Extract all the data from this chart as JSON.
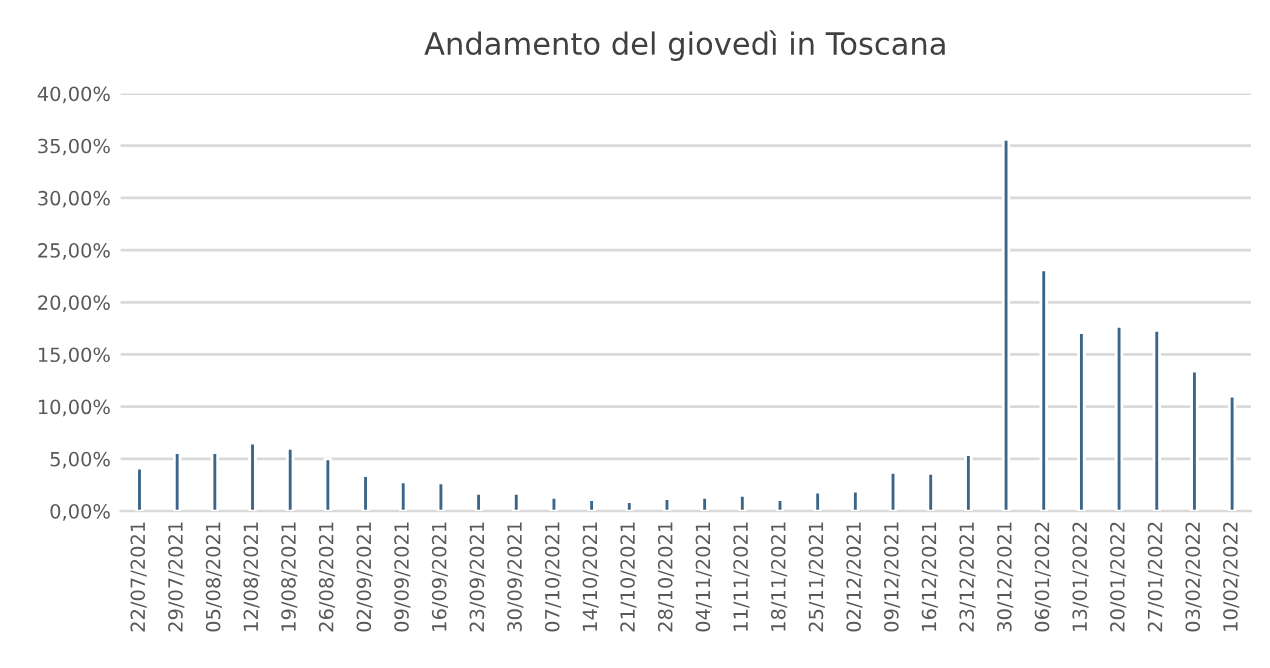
{
  "chart_data": {
    "type": "bar",
    "title": "Andamento del giovedì in Toscana",
    "categories": [
      "22/07/2021",
      "29/07/2021",
      "05/08/2021",
      "12/08/2021",
      "19/08/2021",
      "26/08/2021",
      "02/09/2021",
      "09/09/2021",
      "16/09/2021",
      "23/09/2021",
      "30/09/2021",
      "07/10/2021",
      "14/10/2021",
      "21/10/2021",
      "28/10/2021",
      "04/11/2021",
      "11/11/2021",
      "18/11/2021",
      "25/11/2021",
      "02/12/2021",
      "09/12/2021",
      "16/12/2021",
      "23/12/2021",
      "30/12/2021",
      "06/01/2022",
      "13/01/2022",
      "20/01/2022",
      "27/01/2022",
      "03/02/2022",
      "10/02/2022"
    ],
    "values": [
      4.1,
      5.6,
      5.6,
      6.5,
      6.0,
      5.0,
      3.4,
      2.8,
      2.7,
      1.7,
      1.7,
      1.3,
      1.1,
      0.9,
      1.2,
      1.3,
      1.5,
      1.1,
      1.8,
      1.9,
      3.7,
      3.6,
      5.4,
      35.6,
      23.1,
      17.1,
      17.7,
      17.3,
      13.4,
      11.0
    ],
    "color": "#3c6589",
    "ylim": [
      0,
      40
    ],
    "yticks": [
      {
        "value": 0,
        "label": "0,00%"
      },
      {
        "value": 5,
        "label": "5,00%"
      },
      {
        "value": 10,
        "label": "10,00%"
      },
      {
        "value": 15,
        "label": "15,00%"
      },
      {
        "value": 20,
        "label": "20,00%"
      },
      {
        "value": 25,
        "label": "25,00%"
      },
      {
        "value": 30,
        "label": "30,00%"
      },
      {
        "value": 35,
        "label": "35,00%"
      },
      {
        "value": 40,
        "label": "40,00%"
      }
    ],
    "grid": "y"
  }
}
